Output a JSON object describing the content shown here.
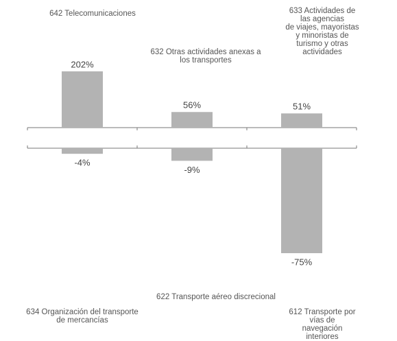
{
  "chart_data": [
    {
      "type": "bar",
      "categories": [
        "642 Telecomunicaciones",
        "632 Otras actividades anexas a\nlos transportes",
        "633 Actividades de las agencias\nde viajes, mayoristas y minoristas de\nturismo y otras actividades"
      ],
      "values": [
        202,
        56,
        51
      ],
      "value_labels": [
        "202%",
        "56%",
        "51%"
      ],
      "color": "#b3b3b3"
    },
    {
      "type": "bar",
      "categories": [
        "634 Organización del transporte\nde mercancías",
        "622 Transporte aéreo discrecional",
        "612 Transporte por vías de\nnavegación interiores"
      ],
      "values": [
        -4,
        -9,
        -75
      ],
      "value_labels": [
        "-4%",
        "-9%",
        "-75%"
      ],
      "color": "#b3b3b3"
    }
  ]
}
